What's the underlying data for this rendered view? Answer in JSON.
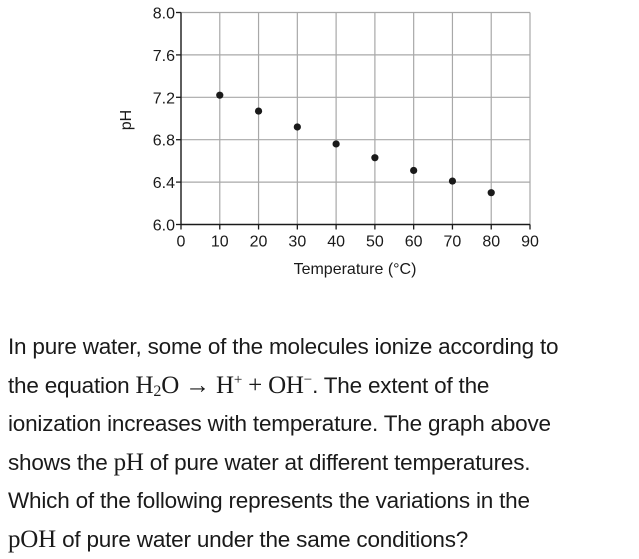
{
  "chart_data": {
    "type": "scatter",
    "title": "",
    "xlabel": "Temperature (°C)",
    "ylabel": "pH",
    "xlim": [
      0,
      90
    ],
    "ylim": [
      6.0,
      8.0
    ],
    "x_ticks": [
      0,
      10,
      20,
      30,
      40,
      50,
      60,
      70,
      80,
      90
    ],
    "y_ticks": [
      6.0,
      6.4,
      6.8,
      7.2,
      7.6,
      8.0
    ],
    "x_tick_labels": [
      "0",
      "10",
      "20",
      "30",
      "40",
      "50",
      "60",
      "70",
      "80",
      "90"
    ],
    "y_tick_labels": [
      "6.0",
      "6.4",
      "6.8",
      "7.2",
      "7.6",
      "8.0"
    ],
    "grid": true,
    "legend": null,
    "series": [
      {
        "name": "pH of pure water",
        "x": [
          10,
          20,
          30,
          40,
          50,
          60,
          70,
          80
        ],
        "y": [
          7.22,
          7.07,
          6.92,
          6.76,
          6.63,
          6.51,
          6.41,
          6.3
        ]
      }
    ],
    "colors": {
      "points": "#1a1a1a",
      "grid": "#a8a8a8",
      "axis": "#1a1a1a"
    }
  },
  "question": {
    "line1": "In pure water, some of the molecules ionize according to",
    "line2_prefix": "the equation ",
    "eq_h": "H",
    "eq_sub2": "2",
    "eq_o": "O",
    "eq_arrow": " → ",
    "eq_hplus_base": "H",
    "eq_plus_sup": "+",
    "eq_plus": " + ",
    "eq_oh_base": "OH",
    "eq_minus_sup": "−",
    "line2_suffix": ". The extent of the",
    "line3": "ionization increases with temperature. The graph above",
    "line4_prefix": "shows the ",
    "line4_ph": "pH",
    "line4_suffix": " of pure water at different temperatures.",
    "line5": "Which of the following represents the variations in the",
    "line6_poh": "pOH",
    "line6_suffix": " of pure water under the same conditions?"
  }
}
